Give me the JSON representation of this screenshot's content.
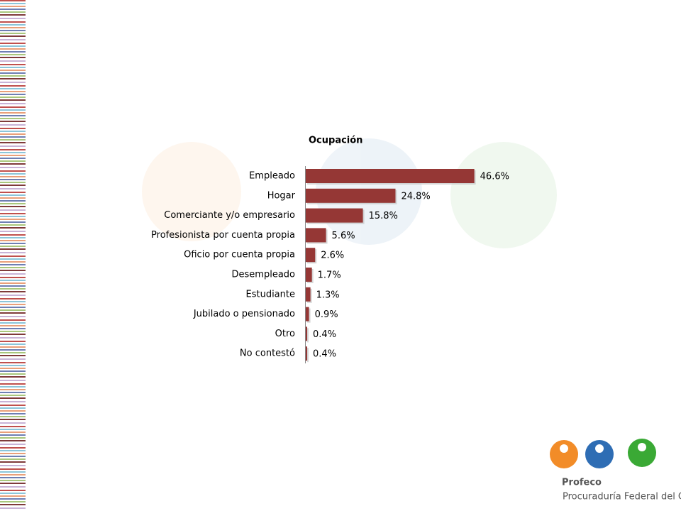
{
  "chart_data": {
    "type": "hbar",
    "title": "Ocupación",
    "categories": [
      "Empleado",
      "Hogar",
      "Comerciante y/o empresario",
      "Profesionista por cuenta propia",
      "Oficio por cuenta propia",
      "Desempleado",
      "Estudiante",
      "Jubilado o pensionado",
      "Otro",
      "No contestó"
    ],
    "values": [
      46.6,
      24.8,
      15.8,
      5.6,
      2.6,
      1.7,
      1.3,
      0.9,
      0.4,
      0.4
    ],
    "value_labels": [
      "46.6%",
      "24.8%",
      "15.8%",
      "5.6%",
      "2.6%",
      "1.7%",
      "1.3%",
      "0.9%",
      "0.4%",
      "0.4%"
    ],
    "color": "#953735"
  },
  "logo": {
    "name": "Profeco",
    "tagline": "Procuraduría Federal del Consumidor"
  }
}
